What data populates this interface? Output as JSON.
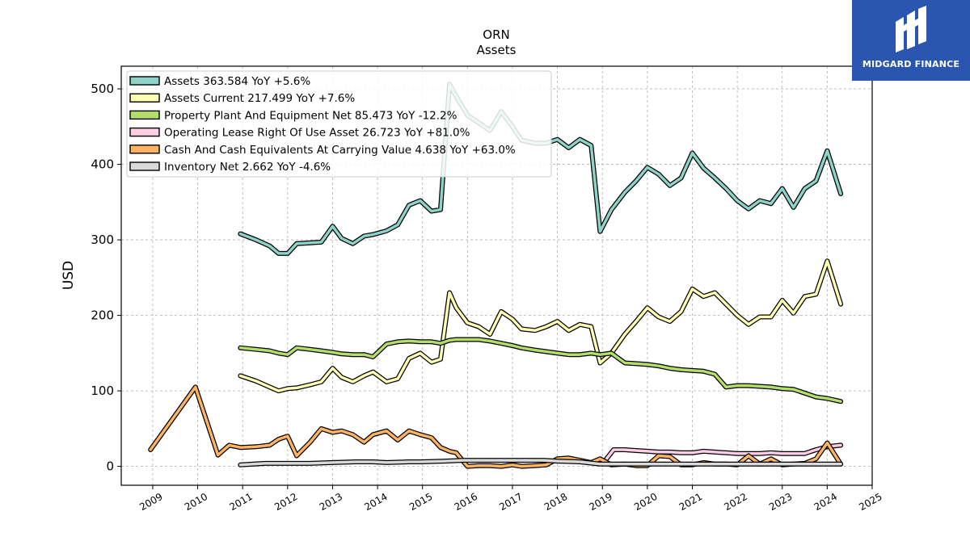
{
  "chart_data": {
    "type": "line",
    "title": "ORN",
    "subtitle": "Assets",
    "xlabel": "",
    "ylabel": "USD",
    "x_ticks": [
      "2009",
      "2010",
      "2011",
      "2012",
      "2013",
      "2014",
      "2015",
      "2016",
      "2017",
      "2018",
      "2019",
      "2020",
      "2021",
      "2022",
      "2023",
      "2024",
      "2025"
    ],
    "y_ticks": [
      "0",
      "100",
      "200",
      "300",
      "400",
      "500"
    ],
    "xlim": [
      2008.3,
      2025.0
    ],
    "ylim": [
      -25,
      530
    ],
    "grid": true,
    "legend_position": "top-left",
    "series": [
      {
        "name": "Assets",
        "label": "Assets  363.584 YoY +5.6%",
        "color": "#8dd3c7",
        "x": [
          2010.95,
          2011.3,
          2011.6,
          2011.8,
          2012.0,
          2012.2,
          2012.5,
          2012.75,
          2013.0,
          2013.2,
          2013.45,
          2013.7,
          2013.9,
          2014.2,
          2014.45,
          2014.7,
          2014.95,
          2015.2,
          2015.4,
          2015.6,
          2015.75,
          2016.0,
          2016.25,
          2016.5,
          2016.75,
          2017.0,
          2017.2,
          2017.5,
          2017.75,
          2018.0,
          2018.25,
          2018.5,
          2018.75,
          2018.95,
          2019.2,
          2019.5,
          2019.75,
          2020.0,
          2020.25,
          2020.5,
          2020.75,
          2021.0,
          2021.25,
          2021.5,
          2021.75,
          2022.0,
          2022.25,
          2022.5,
          2022.75,
          2023.0,
          2023.25,
          2023.5,
          2023.75,
          2024.0,
          2024.3
        ],
        "y": [
          308,
          300,
          292,
          282,
          282,
          295,
          296,
          297,
          318,
          302,
          295,
          305,
          307,
          312,
          320,
          346,
          352,
          338,
          340,
          506,
          490,
          465,
          455,
          445,
          470,
          450,
          432,
          428,
          428,
          433,
          422,
          433,
          425,
          311,
          340,
          363,
          378,
          396,
          387,
          372,
          382,
          415,
          395,
          382,
          368,
          352,
          341,
          352,
          348,
          368,
          343,
          368,
          378,
          418,
          361
        ]
      },
      {
        "name": "Assets Current",
        "label": "Assets Current  217.499 YoY +7.6%",
        "color": "#ffffb3",
        "x": [
          2010.95,
          2011.3,
          2011.6,
          2011.8,
          2012.0,
          2012.2,
          2012.5,
          2012.75,
          2013.0,
          2013.2,
          2013.45,
          2013.7,
          2013.9,
          2014.2,
          2014.45,
          2014.7,
          2014.95,
          2015.2,
          2015.4,
          2015.6,
          2015.75,
          2016.0,
          2016.25,
          2016.5,
          2016.75,
          2017.0,
          2017.2,
          2017.5,
          2017.75,
          2018.0,
          2018.25,
          2018.5,
          2018.75,
          2018.95,
          2019.2,
          2019.5,
          2019.75,
          2020.0,
          2020.25,
          2020.5,
          2020.75,
          2021.0,
          2021.25,
          2021.5,
          2021.75,
          2022.0,
          2022.25,
          2022.5,
          2022.75,
          2023.0,
          2023.25,
          2023.5,
          2023.75,
          2024.0,
          2024.3
        ],
        "y": [
          120,
          113,
          105,
          100,
          103,
          104,
          108,
          112,
          130,
          118,
          112,
          120,
          125,
          112,
          116,
          143,
          150,
          138,
          142,
          230,
          210,
          190,
          185,
          175,
          205,
          195,
          182,
          180,
          185,
          192,
          180,
          188,
          185,
          137,
          150,
          175,
          192,
          210,
          198,
          192,
          205,
          235,
          225,
          230,
          215,
          200,
          188,
          198,
          198,
          220,
          203,
          225,
          228,
          272,
          215
        ]
      },
      {
        "name": "Property Plant And Equipment Net",
        "label": "Property Plant And Equipment Net  85.473 YoY -12.2%",
        "color": "#b3de69",
        "x": [
          2010.95,
          2011.3,
          2011.6,
          2011.8,
          2012.0,
          2012.2,
          2012.5,
          2012.75,
          2013.0,
          2013.2,
          2013.45,
          2013.7,
          2013.9,
          2014.2,
          2014.45,
          2014.7,
          2014.95,
          2015.2,
          2015.4,
          2015.6,
          2015.75,
          2016.0,
          2016.25,
          2016.5,
          2016.75,
          2017.0,
          2017.2,
          2017.5,
          2017.75,
          2018.0,
          2018.25,
          2018.5,
          2018.75,
          2018.95,
          2019.2,
          2019.5,
          2019.75,
          2020.0,
          2020.25,
          2020.5,
          2020.75,
          2021.0,
          2021.25,
          2021.5,
          2021.75,
          2022.0,
          2022.25,
          2022.5,
          2022.75,
          2023.0,
          2023.25,
          2023.5,
          2023.75,
          2024.0,
          2024.3
        ],
        "y": [
          157,
          155,
          153,
          150,
          148,
          157,
          155,
          153,
          151,
          149,
          148,
          148,
          145,
          162,
          165,
          166,
          165,
          165,
          163,
          167,
          168,
          168,
          168,
          166,
          163,
          160,
          157,
          154,
          152,
          150,
          148,
          148,
          150,
          148,
          150,
          137,
          136,
          135,
          133,
          130,
          128,
          127,
          126,
          122,
          105,
          107,
          107,
          106,
          105,
          103,
          102,
          97,
          92,
          90,
          86
        ]
      },
      {
        "name": "Operating Lease Right Of Use Asset",
        "label": "Operating Lease Right Of Use Asset  26.723 YoY +81.0%",
        "color": "#fccde5",
        "x": [
          2019.0,
          2019.25,
          2019.5,
          2019.75,
          2020.0,
          2020.25,
          2020.5,
          2020.75,
          2021.0,
          2021.25,
          2021.5,
          2021.75,
          2022.0,
          2022.25,
          2022.5,
          2022.75,
          2023.0,
          2023.25,
          2023.5,
          2023.75,
          2024.0,
          2024.3
        ],
        "y": [
          3,
          22,
          22,
          21,
          20,
          19,
          19,
          18,
          18,
          20,
          19,
          18,
          17,
          17,
          17,
          18,
          17,
          17,
          17,
          22,
          26,
          28
        ]
      },
      {
        "name": "Cash And Cash Equivalents At Carrying Value",
        "label": "Cash And Cash Equivalents At Carrying Value  4.638 YoY +63.0%",
        "color": "#fdb462",
        "x": [
          2008.95,
          2009.95,
          2010.45,
          2010.7,
          2010.95,
          2011.3,
          2011.6,
          2011.8,
          2012.0,
          2012.2,
          2012.5,
          2012.75,
          2013.0,
          2013.2,
          2013.45,
          2013.7,
          2013.9,
          2014.2,
          2014.45,
          2014.7,
          2014.95,
          2015.2,
          2015.4,
          2015.6,
          2015.75,
          2016.0,
          2016.25,
          2016.5,
          2016.75,
          2017.0,
          2017.2,
          2017.5,
          2017.75,
          2018.0,
          2018.25,
          2018.5,
          2018.75,
          2018.95,
          2019.2,
          2019.5,
          2019.75,
          2020.0,
          2020.25,
          2020.5,
          2020.75,
          2021.0,
          2021.25,
          2021.5,
          2021.75,
          2022.0,
          2022.25,
          2022.5,
          2022.75,
          2023.0,
          2023.25,
          2023.5,
          2023.75,
          2024.0,
          2024.3
        ],
        "y": [
          22,
          105,
          15,
          28,
          25,
          26,
          28,
          36,
          40,
          14,
          32,
          50,
          45,
          47,
          42,
          32,
          42,
          47,
          35,
          47,
          42,
          38,
          25,
          20,
          18,
          0,
          1,
          1,
          0,
          2,
          0,
          1,
          2,
          10,
          11,
          8,
          5,
          10,
          2,
          3,
          1,
          1,
          14,
          13,
          2,
          2,
          5,
          3,
          3,
          2,
          14,
          3,
          10,
          2,
          3,
          4,
          10,
          31,
          3
        ]
      },
      {
        "name": "Inventory Net",
        "label": "Inventory Net  2.662 YoY -4.6%",
        "color": "#d9d9d9",
        "x": [
          2010.95,
          2011.5,
          2012.0,
          2012.5,
          2013.0,
          2013.5,
          2013.9,
          2014.2,
          2014.7,
          2014.95,
          2015.5,
          2015.9,
          2016.2,
          2016.7,
          2017.2,
          2017.7,
          2018.0,
          2018.5,
          2018.95,
          2019.5,
          2020.0,
          2020.5,
          2021.0,
          2021.5,
          2022.0,
          2022.5,
          2023.0,
          2023.5,
          2024.0,
          2024.3
        ],
        "y": [
          2,
          4,
          4,
          4,
          5,
          6,
          6,
          5,
          6,
          6,
          7,
          8,
          8,
          8,
          8,
          8,
          7,
          6,
          3,
          3,
          3,
          3,
          3,
          3,
          3,
          3,
          3,
          3,
          3,
          3
        ]
      }
    ]
  },
  "logo": {
    "text": "MIDGARD FINANCE",
    "bg_color": "#2a56b0",
    "icon": "midgard-m-logo-icon"
  }
}
